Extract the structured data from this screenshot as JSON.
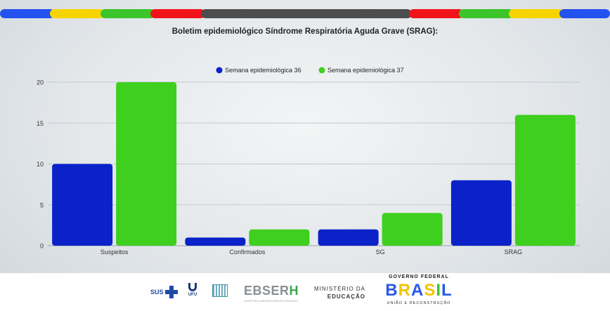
{
  "header_stripe": {
    "colors": [
      "#2452f0",
      "#f7d400",
      "#3cc52a",
      "#f0141a",
      "#4d4d4d",
      "#f0141a",
      "#3cc52a",
      "#f7d400",
      "#2452f0"
    ]
  },
  "chart_data": {
    "type": "bar",
    "title": "Boletim epidemiológico Síndrome Respiratória Aguda Grave (SRAG):",
    "categories": [
      "Suspeitos",
      "Confirmados",
      "SG",
      "SRAG"
    ],
    "series": [
      {
        "name": "Semana epidemiológica 36",
        "color": "#0a22c8",
        "values": [
          10,
          1,
          2,
          8
        ]
      },
      {
        "name": "Semana epidemiológica 37",
        "color": "#3fcf1f",
        "values": [
          20,
          2,
          4,
          16
        ]
      }
    ],
    "xlabel": "",
    "ylabel": "",
    "ylim": [
      0,
      20
    ],
    "yticks": [
      0,
      5,
      10,
      15,
      20
    ],
    "grid": true,
    "legend_position": "top-center"
  },
  "footer": {
    "sus_label": "SUS",
    "ufu_label": "UFU",
    "ebserh_name_main": "EBSER",
    "ebserh_name_last": "H",
    "ebserh_sub": "HOSPITAIS UNIVERSITÁRIOS FEDERAIS",
    "mec_line1": "MINISTÉRIO DA",
    "mec_line2": "EDUCAÇÃO",
    "gov_top": "GOVERNO FEDERAL",
    "gov_word": "BRASIL",
    "gov_word_colors": [
      "#2a58e8",
      "#f2c400",
      "#2a58e8",
      "#f2c400",
      "#3cc52a",
      "#2a58e8"
    ],
    "gov_bottom": "UNIÃO E RECONSTRUÇÃO"
  }
}
